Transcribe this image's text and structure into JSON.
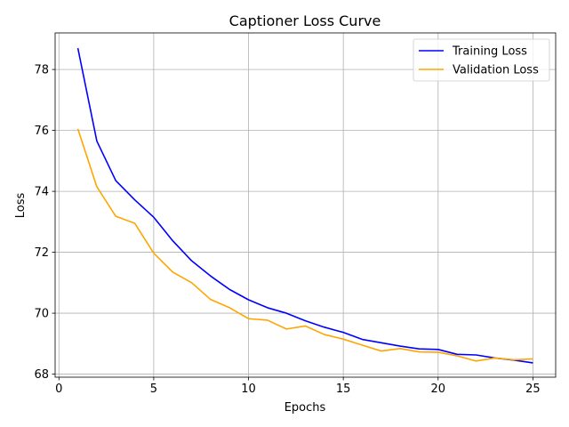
{
  "chart_data": {
    "type": "line",
    "title": "Captioner Loss Curve",
    "xlabel": "Epochs",
    "ylabel": "Loss",
    "xlim": [
      -0.2,
      26.2
    ],
    "ylim": [
      67.9,
      79.2
    ],
    "x_ticks": [
      0,
      5,
      10,
      15,
      20,
      25
    ],
    "y_ticks": [
      68,
      70,
      72,
      74,
      76,
      78
    ],
    "grid": true,
    "legend_position": "top-right",
    "x": [
      1,
      2,
      3,
      4,
      5,
      6,
      7,
      8,
      9,
      10,
      11,
      12,
      13,
      14,
      15,
      16,
      17,
      18,
      19,
      20,
      21,
      22,
      23,
      24,
      25
    ],
    "series": [
      {
        "name": "Training Loss",
        "color": "#0000ff",
        "values": [
          78.7,
          75.65,
          74.35,
          73.72,
          73.15,
          72.38,
          71.72,
          71.22,
          70.78,
          70.44,
          70.18,
          70.0,
          69.75,
          69.54,
          69.37,
          69.14,
          69.03,
          68.92,
          68.83,
          68.81,
          68.65,
          68.63,
          68.53,
          68.46,
          68.37
        ]
      },
      {
        "name": "Validation Loss",
        "color": "#ffa500",
        "values": [
          76.05,
          74.15,
          73.18,
          72.95,
          71.97,
          71.35,
          71.0,
          70.45,
          70.18,
          69.82,
          69.77,
          69.48,
          69.58,
          69.3,
          69.15,
          68.95,
          68.76,
          68.84,
          68.73,
          68.72,
          68.6,
          68.43,
          68.53,
          68.47,
          68.5
        ]
      }
    ]
  }
}
